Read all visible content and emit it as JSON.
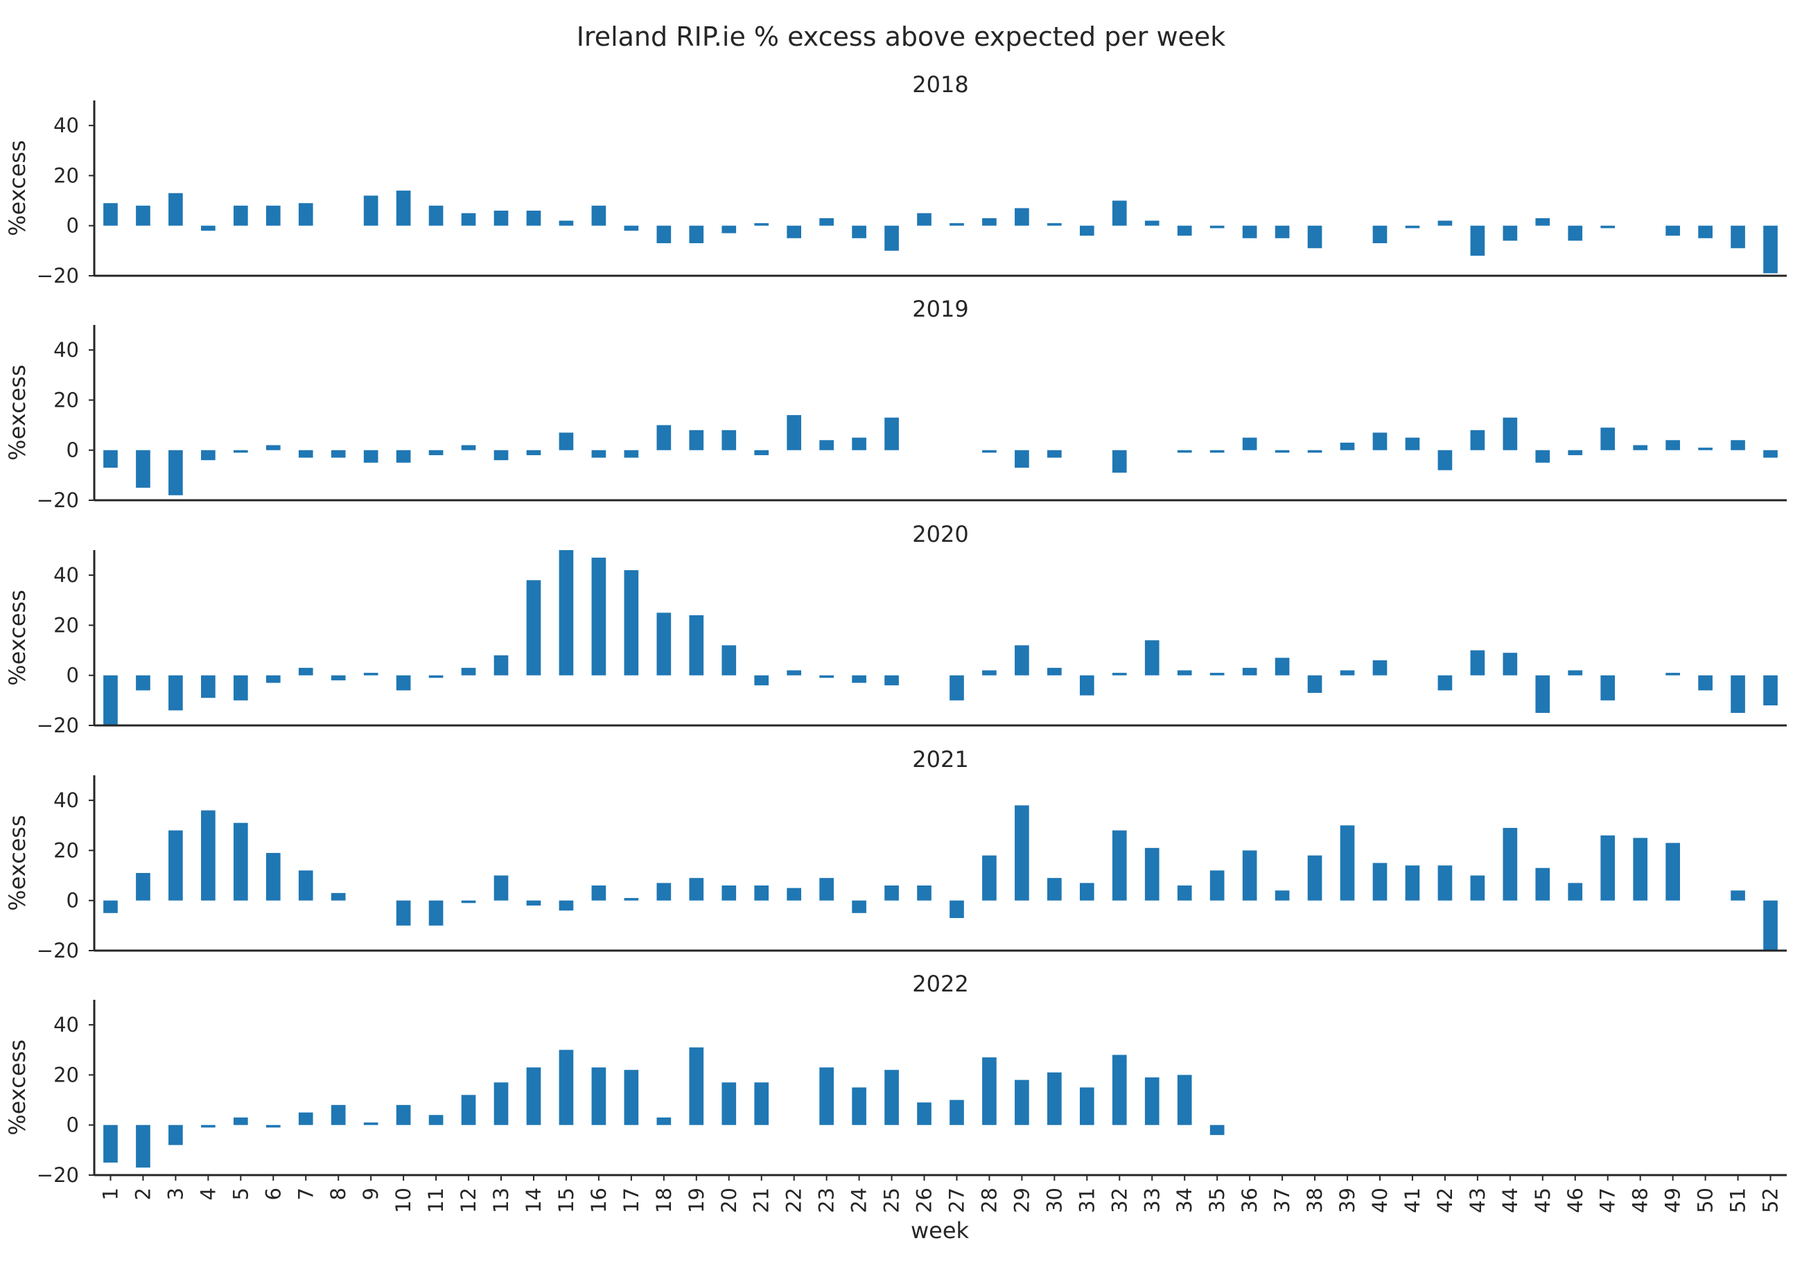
{
  "chart_data": {
    "type": "bar",
    "title": "Ireland RIP.ie % excess above expected per week",
    "xlabel": "week",
    "ylabel": "%excess",
    "ylim": [
      -20,
      50
    ],
    "yticks": [
      -20,
      0,
      20,
      40
    ],
    "grid": false,
    "categories": [
      "1",
      "2",
      "3",
      "4",
      "5",
      "6",
      "7",
      "8",
      "9",
      "10",
      "11",
      "12",
      "13",
      "14",
      "15",
      "16",
      "17",
      "18",
      "19",
      "20",
      "21",
      "22",
      "23",
      "24",
      "25",
      "26",
      "27",
      "28",
      "29",
      "30",
      "31",
      "32",
      "33",
      "34",
      "35",
      "36",
      "37",
      "38",
      "39",
      "40",
      "41",
      "42",
      "43",
      "44",
      "45",
      "46",
      "47",
      "48",
      "49",
      "50",
      "51",
      "52"
    ],
    "series": [
      {
        "name": "2018",
        "values": [
          9,
          8,
          13,
          -2,
          8,
          8,
          9,
          0,
          12,
          14,
          8,
          5,
          6,
          6,
          2,
          8,
          -2,
          -7,
          -7,
          -3,
          1,
          -5,
          3,
          -5,
          -10,
          5,
          1,
          3,
          7,
          1,
          -4,
          10,
          2,
          -4,
          -1,
          -5,
          -5,
          -9,
          0,
          -7,
          -1,
          2,
          -12,
          -6,
          3,
          -6,
          -1,
          0,
          -4,
          -5,
          -9,
          -19
        ]
      },
      {
        "name": "2019",
        "values": [
          -7,
          -15,
          -18,
          -4,
          -1,
          2,
          -3,
          -3,
          -5,
          -5,
          -2,
          2,
          -4,
          -2,
          7,
          -3,
          -3,
          10,
          8,
          8,
          -2,
          14,
          4,
          5,
          13,
          0,
          0,
          -1,
          -7,
          -3,
          0,
          -9,
          0,
          -1,
          -1,
          5,
          -1,
          -1,
          3,
          7,
          5,
          -8,
          8,
          13,
          -5,
          -2,
          9,
          2,
          4,
          1,
          4,
          -3
        ]
      },
      {
        "name": "2020",
        "values": [
          -20,
          -6,
          -14,
          -9,
          -10,
          -3,
          3,
          -2,
          1,
          -6,
          -1,
          3,
          8,
          38,
          50,
          47,
          42,
          25,
          24,
          12,
          -4,
          2,
          -1,
          -3,
          -4,
          0,
          -10,
          2,
          12,
          3,
          -8,
          1,
          14,
          2,
          1,
          3,
          7,
          -7,
          2,
          6,
          0,
          -6,
          10,
          9,
          -15,
          2,
          -10,
          0,
          1,
          -6,
          -15,
          -12
        ]
      },
      {
        "name": "2021",
        "values": [
          -5,
          11,
          28,
          36,
          31,
          19,
          12,
          3,
          0,
          -10,
          -10,
          -1,
          10,
          -2,
          -4,
          6,
          1,
          7,
          9,
          6,
          6,
          5,
          9,
          -5,
          6,
          6,
          -7,
          18,
          38,
          9,
          7,
          28,
          21,
          6,
          12,
          20,
          4,
          18,
          30,
          15,
          14,
          14,
          10,
          29,
          13,
          7,
          26,
          25,
          23,
          0,
          4,
          -20
        ]
      },
      {
        "name": "2022",
        "values": [
          -15,
          -17,
          -8,
          -1,
          3,
          -1,
          5,
          8,
          1,
          8,
          4,
          12,
          17,
          23,
          30,
          23,
          22,
          3,
          31,
          17,
          17,
          0,
          23,
          15,
          22,
          9,
          10,
          27,
          18,
          21,
          15,
          28,
          19,
          20,
          -4,
          0,
          0,
          0,
          0,
          0,
          0,
          0,
          0,
          0,
          0,
          0,
          0,
          0,
          0,
          0,
          0,
          0
        ]
      }
    ]
  }
}
